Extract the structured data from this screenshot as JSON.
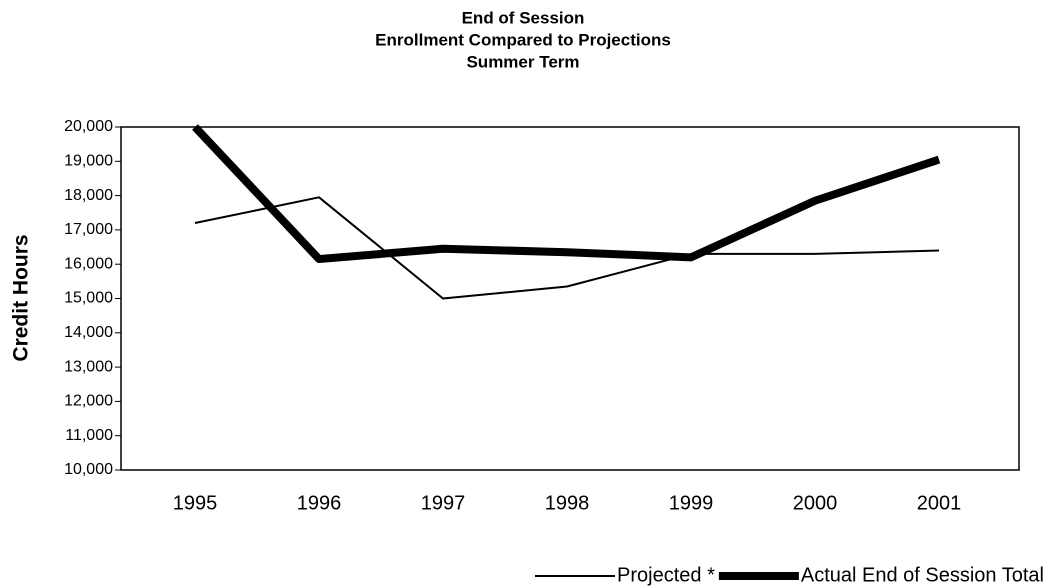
{
  "chart_data": {
    "type": "line",
    "title": [
      "End of Session",
      "Enrollment Compared to Projections",
      "Summer Term"
    ],
    "y_label": "Credit Hours",
    "categories": [
      "1995",
      "1996",
      "1997",
      "1998",
      "1999",
      "2000",
      "2001"
    ],
    "series": [
      {
        "name": "Projected *",
        "color": "#000000",
        "line_width": 2,
        "values": [
          17200,
          17950,
          15000,
          15350,
          16300,
          16300,
          16400
        ]
      },
      {
        "name": "Actual End of Session Total",
        "color": "#000000",
        "line_width": 8,
        "values": [
          20000,
          16150,
          16450,
          16350,
          16200,
          17850,
          19050
        ]
      }
    ],
    "ylim": [
      10000,
      20000
    ],
    "yticks": [
      {
        "value": 10000,
        "label": "10,000"
      },
      {
        "value": 11000,
        "label": "11,000"
      },
      {
        "value": 12000,
        "label": "12,000"
      },
      {
        "value": 13000,
        "label": "13,000"
      },
      {
        "value": 14000,
        "label": "14,000"
      },
      {
        "value": 15000,
        "label": "15,000"
      },
      {
        "value": 16000,
        "label": "16,000"
      },
      {
        "value": 17000,
        "label": "17,000"
      },
      {
        "value": 18000,
        "label": "18,000"
      },
      {
        "value": 19000,
        "label": "19,000"
      },
      {
        "value": 20000,
        "label": "20,000"
      }
    ],
    "grid": false,
    "legend": "bottom-right"
  }
}
